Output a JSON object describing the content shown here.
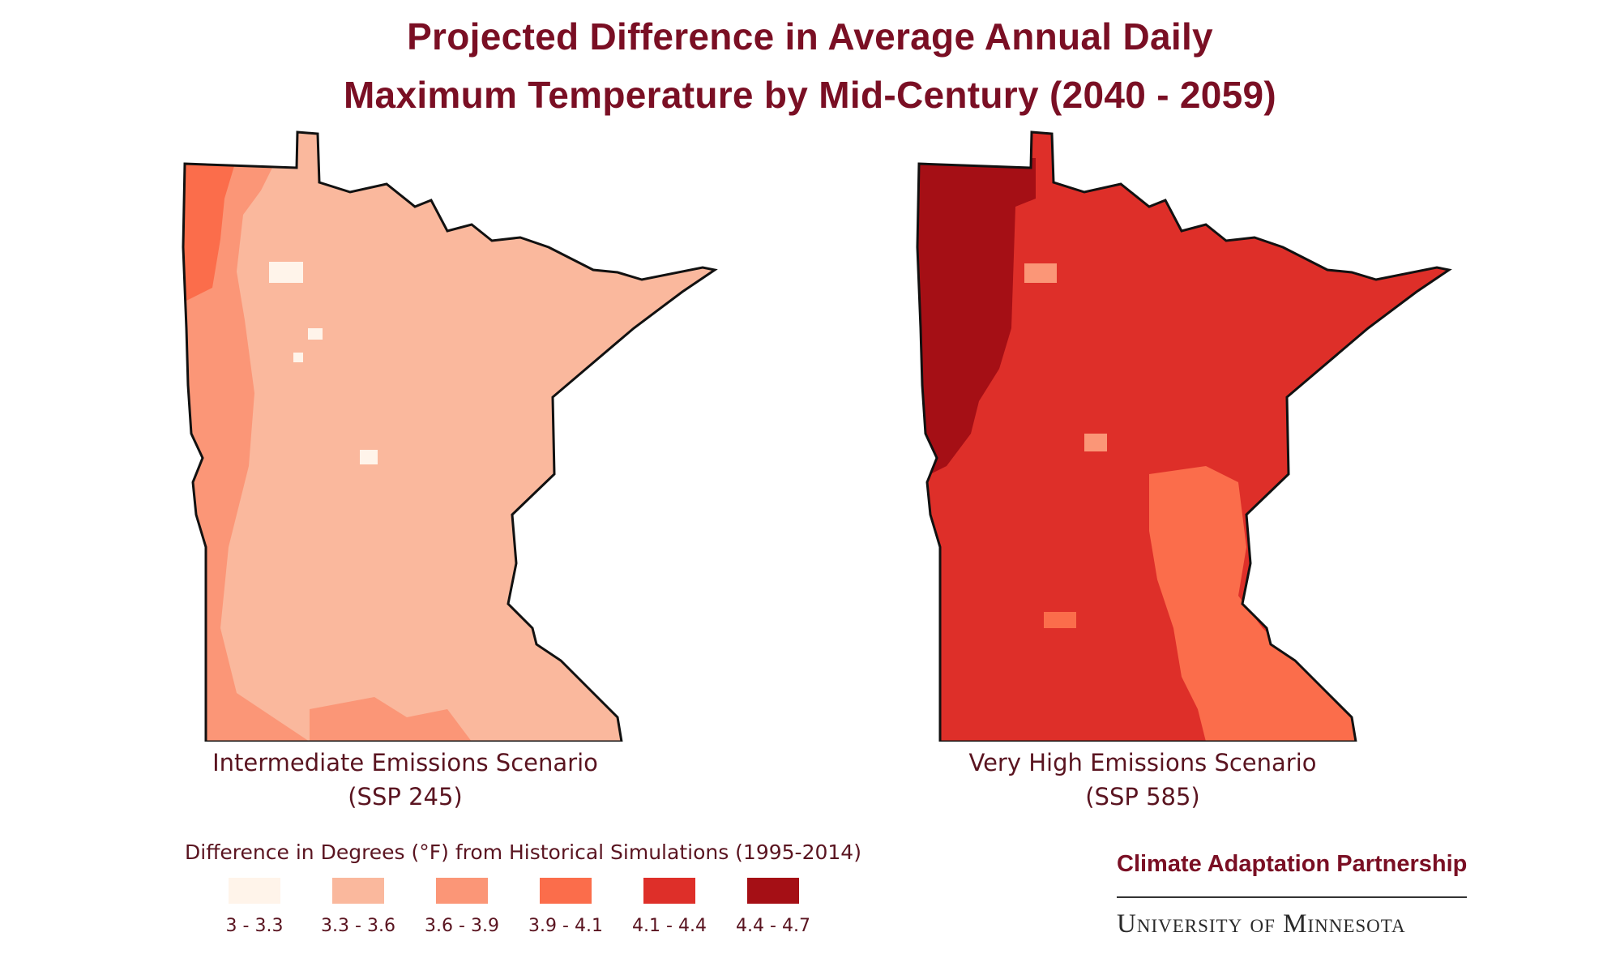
{
  "title_line1": "Projected Difference in Average Annual Daily",
  "title_line2": "Maximum Temperature by Mid-Century (2040 - 2059)",
  "maps": [
    {
      "caption_line1": "Intermediate Emissions Scenario",
      "caption_line2": "(SSP 245)",
      "colors": {
        "base": "#fab89d",
        "mid": "#fb9677",
        "high": "#fb6d4b",
        "patch": "#fff4ea"
      }
    },
    {
      "caption_line1": "Very High Emissions Scenario",
      "caption_line2": "(SSP 585)",
      "colors": {
        "base": "#de2f29",
        "mid": "#fb6d4b",
        "high": "#a50f15",
        "patch": "#fb9677"
      }
    }
  ],
  "legend": {
    "title": "Difference in Degrees (°F) from Historical Simulations (1995-2014)",
    "items": [
      {
        "label": "3 - 3.3",
        "color": "#fff4ea"
      },
      {
        "label": "3.3 - 3.6",
        "color": "#fab89d"
      },
      {
        "label": "3.6 - 3.9",
        "color": "#fb9677"
      },
      {
        "label": "3.9 - 4.1",
        "color": "#fb6d4b"
      },
      {
        "label": "4.1 - 4.4",
        "color": "#de2f29"
      },
      {
        "label": "4.4 - 4.7",
        "color": "#a50f15"
      }
    ]
  },
  "branding": {
    "partner": "Climate Adaptation Partnership",
    "university": "University of Minnesota"
  }
}
